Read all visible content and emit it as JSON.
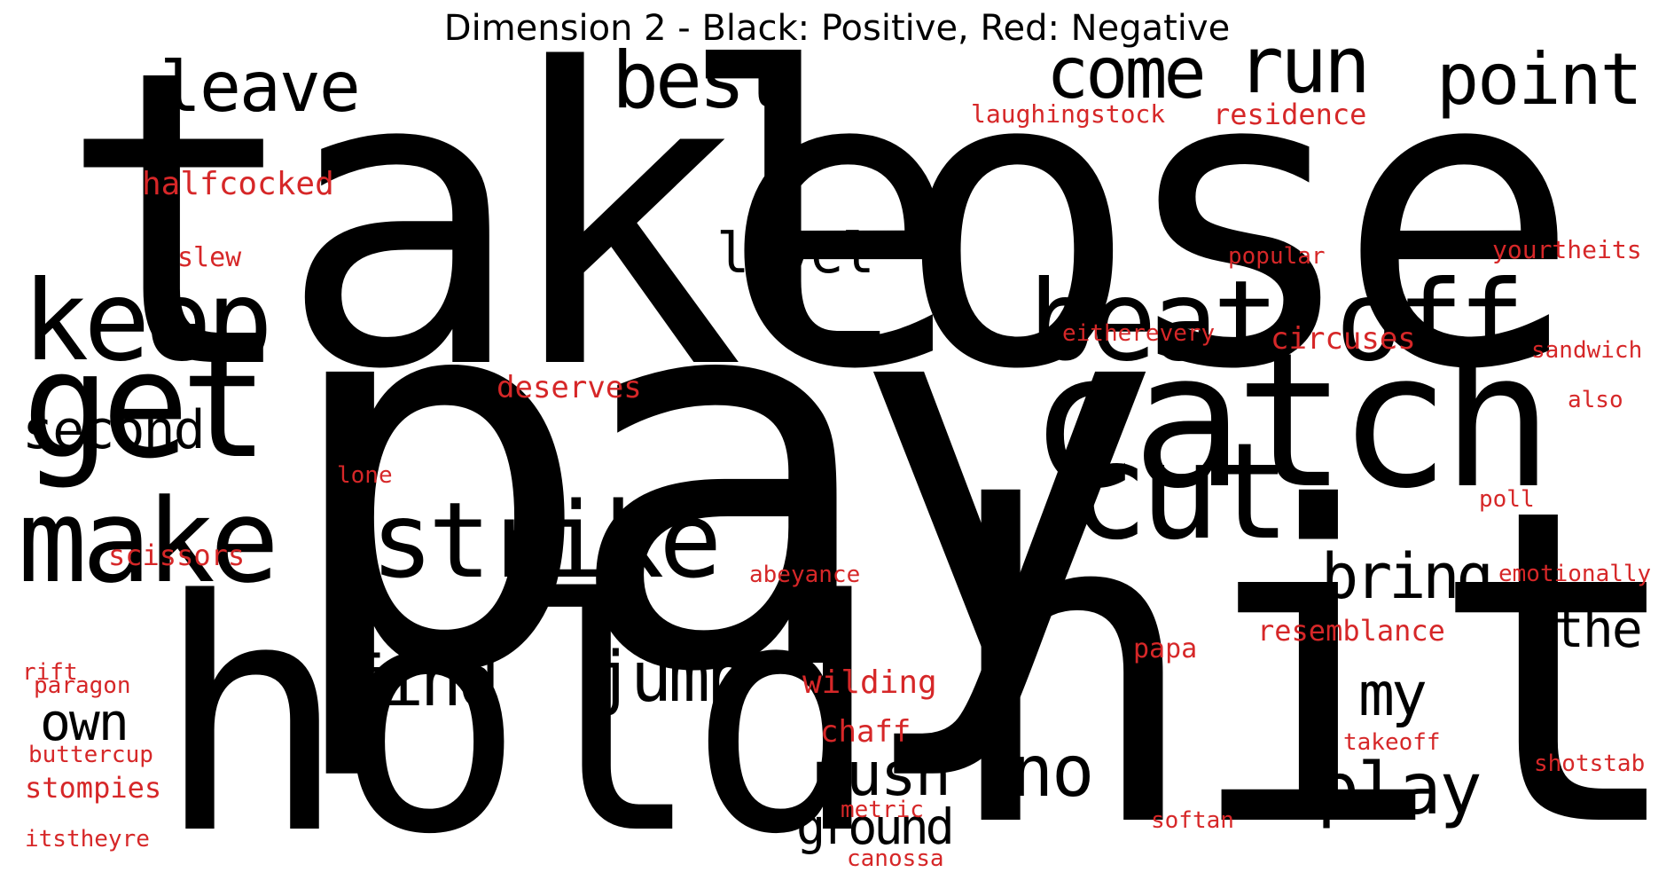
{
  "title": "Dimension 2 - Black: Positive, Red: Negative",
  "colors": {
    "positive": "#000000",
    "negative": "#d62728",
    "background": "#ffffff"
  },
  "words": [
    {
      "text": "take",
      "polarity": "positive"
    },
    {
      "text": "lose",
      "polarity": "positive"
    },
    {
      "text": "pay",
      "polarity": "positive"
    },
    {
      "text": "hit",
      "polarity": "positive"
    },
    {
      "text": "hold",
      "polarity": "positive"
    },
    {
      "text": "catch",
      "polarity": "positive"
    },
    {
      "text": "beat off",
      "polarity": "positive"
    },
    {
      "text": "keep",
      "polarity": "positive"
    },
    {
      "text": "get",
      "polarity": "positive"
    },
    {
      "text": "make",
      "polarity": "positive"
    },
    {
      "text": "strike",
      "polarity": "positive"
    },
    {
      "text": "cut",
      "polarity": "positive"
    },
    {
      "text": "leave",
      "polarity": "positive"
    },
    {
      "text": "best",
      "polarity": "positive"
    },
    {
      "text": "come",
      "polarity": "positive"
    },
    {
      "text": "run",
      "polarity": "positive"
    },
    {
      "text": "point",
      "polarity": "positive"
    },
    {
      "text": "level",
      "polarity": "positive"
    },
    {
      "text": "second",
      "polarity": "positive"
    },
    {
      "text": "bring",
      "polarity": "positive"
    },
    {
      "text": "the",
      "polarity": "positive"
    },
    {
      "text": "find",
      "polarity": "positive"
    },
    {
      "text": "jump",
      "polarity": "positive"
    },
    {
      "text": "own",
      "polarity": "positive"
    },
    {
      "text": "my",
      "polarity": "positive"
    },
    {
      "text": "push",
      "polarity": "positive"
    },
    {
      "text": "no",
      "polarity": "positive"
    },
    {
      "text": "play",
      "polarity": "positive"
    },
    {
      "text": "ground",
      "polarity": "positive"
    },
    {
      "text": "halfcocked",
      "polarity": "negative"
    },
    {
      "text": "laughingstock",
      "polarity": "negative"
    },
    {
      "text": "residence",
      "polarity": "negative"
    },
    {
      "text": "slew",
      "polarity": "negative"
    },
    {
      "text": "popular",
      "polarity": "negative"
    },
    {
      "text": "yourtheits",
      "polarity": "negative"
    },
    {
      "text": "eitherevery",
      "polarity": "negative"
    },
    {
      "text": "circuses",
      "polarity": "negative"
    },
    {
      "text": "sandwich",
      "polarity": "negative"
    },
    {
      "text": "deserves",
      "polarity": "negative"
    },
    {
      "text": "also",
      "polarity": "negative"
    },
    {
      "text": "lone",
      "polarity": "negative"
    },
    {
      "text": "poll",
      "polarity": "negative"
    },
    {
      "text": "scissors",
      "polarity": "negative"
    },
    {
      "text": "abeyance",
      "polarity": "negative"
    },
    {
      "text": "emotionally",
      "polarity": "negative"
    },
    {
      "text": "resemblance",
      "polarity": "negative"
    },
    {
      "text": "rift",
      "polarity": "negative"
    },
    {
      "text": "paragon",
      "polarity": "negative"
    },
    {
      "text": "papa",
      "polarity": "negative"
    },
    {
      "text": "wilding",
      "polarity": "negative"
    },
    {
      "text": "buttercup",
      "polarity": "negative"
    },
    {
      "text": "chaff",
      "polarity": "negative"
    },
    {
      "text": "takeoff",
      "polarity": "negative"
    },
    {
      "text": "shotstab",
      "polarity": "negative"
    },
    {
      "text": "stompies",
      "polarity": "negative"
    },
    {
      "text": "metric",
      "polarity": "negative"
    },
    {
      "text": "softan",
      "polarity": "negative"
    },
    {
      "text": "itstheyre",
      "polarity": "negative"
    },
    {
      "text": "canossa",
      "polarity": "negative"
    }
  ]
}
